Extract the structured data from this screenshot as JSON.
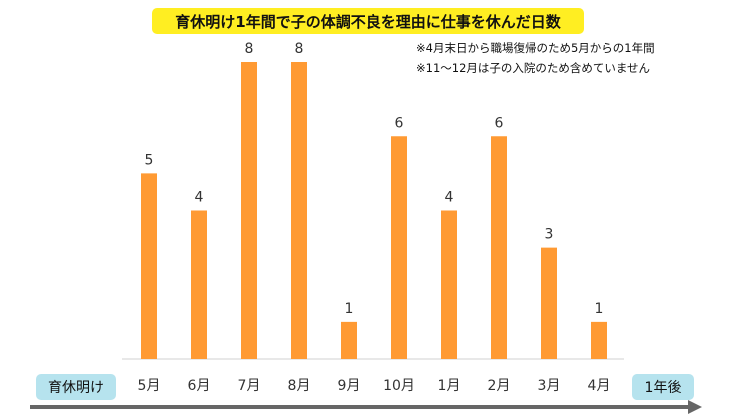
{
  "title": "育休明け1年間で子の体調不良を理由に仕事を休んだ日数",
  "notes": [
    "※4月末日から職場復帰のため5月からの1年間",
    "※11〜12月は子の入院のため含めていません"
  ],
  "start_label": "育休明け",
  "end_label": "1年後",
  "colors": {
    "bar": "#ff9a33",
    "title_bg": "#ffee22",
    "pill_bg": "#b6e3ee",
    "arrow": "#666666",
    "baseline": "#d0d0d0"
  },
  "chart_data": {
    "type": "bar",
    "categories": [
      "5月",
      "6月",
      "7月",
      "8月",
      "9月",
      "10月",
      "1月",
      "2月",
      "3月",
      "4月"
    ],
    "values": [
      5,
      4,
      8,
      8,
      1,
      6,
      4,
      6,
      3,
      1
    ],
    "title": "育休明け1年間で子の体調不良を理由に仕事を休んだ日数",
    "ylim": [
      0,
      8
    ],
    "grid": false,
    "data_labels": true
  }
}
